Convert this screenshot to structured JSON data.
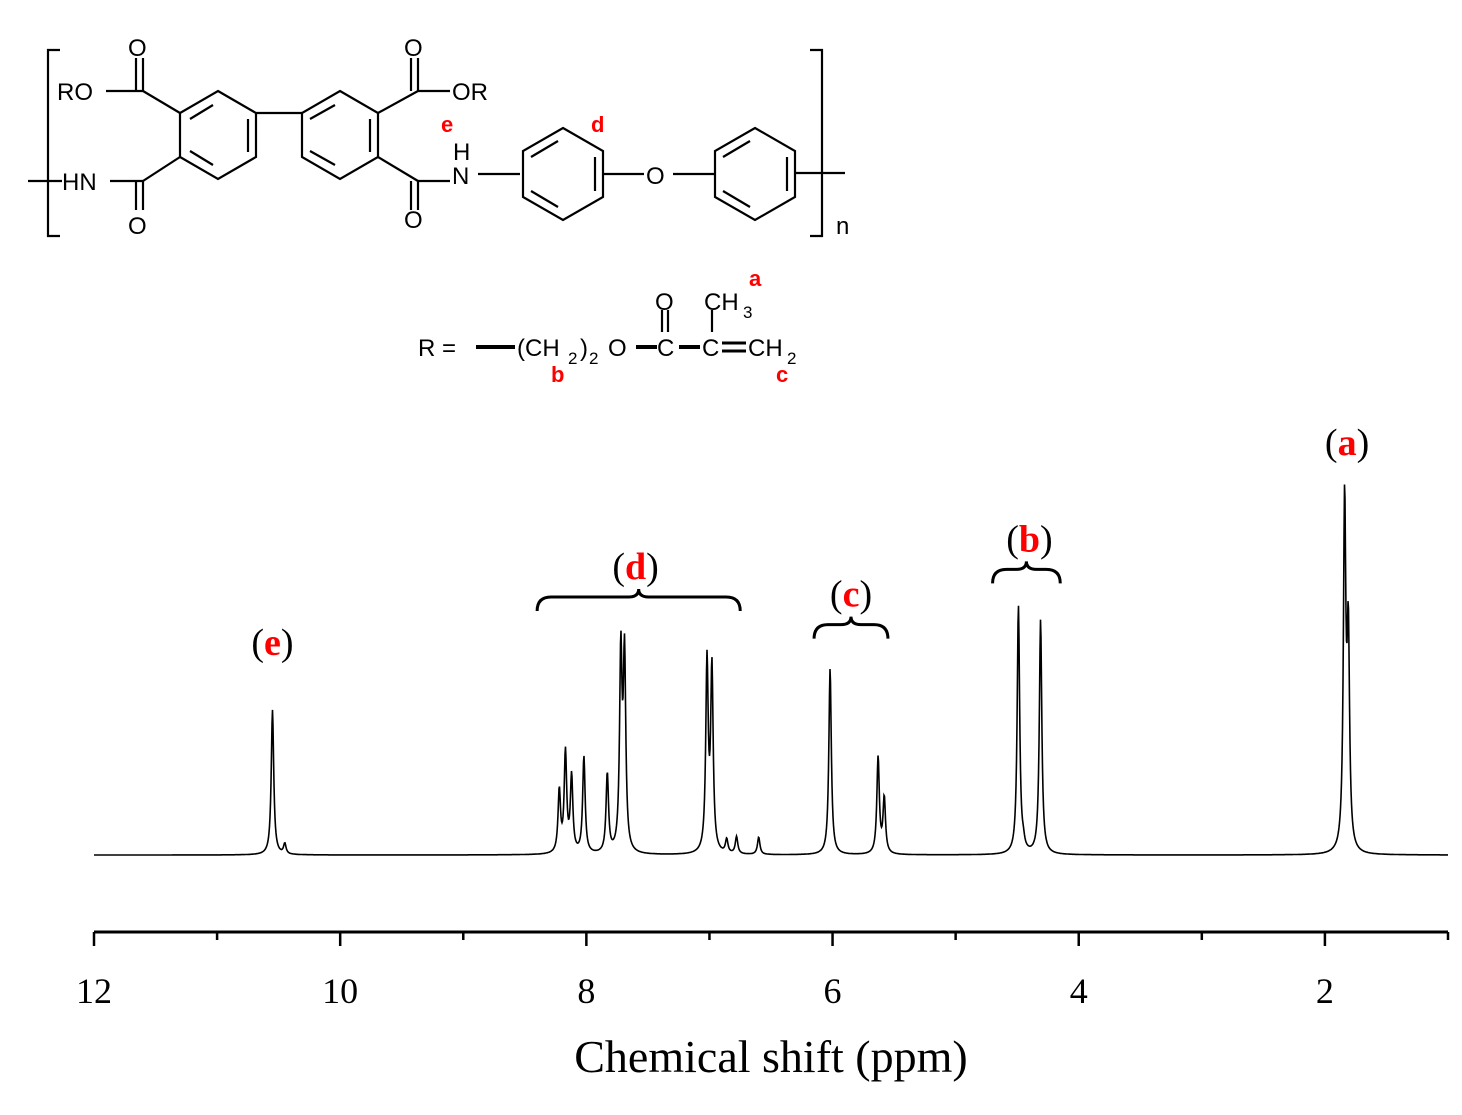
{
  "structure": {
    "left_ester": "RO",
    "right_ester": "OR",
    "oxygen": "O",
    "amide_left": "HN",
    "amide_right_h": "H",
    "amide_right_n": "N",
    "ether_o": "O",
    "repeat": "n",
    "label_d": "d",
    "label_e": "e",
    "r_def": "R =",
    "r_chain": "(CH",
    "r_sub2": "2",
    "r_close": ")",
    "r_o": "O",
    "r_c1": "C",
    "r_o2": "O",
    "r_c2": "C",
    "r_ch3": "CH",
    "r_sub3": "3",
    "r_ch2": "CH",
    "label_a": "a",
    "label_b": "b",
    "label_c": "c"
  },
  "chart_data": {
    "type": "line",
    "title": "",
    "xlabel": "Chemical shift (ppm)",
    "ylabel": "",
    "xlim": [
      12,
      1
    ],
    "x_reversed": true,
    "x_ticks": [
      "12",
      "10",
      "8",
      "6",
      "4",
      "2"
    ],
    "x_tick_values": [
      12,
      10,
      8,
      6,
      4,
      2
    ],
    "baseline_intensity": 0,
    "ylim": [
      0,
      1
    ],
    "peaks": [
      {
        "ppm": 10.55,
        "intensity": 0.42,
        "label": "e"
      },
      {
        "ppm": 10.45,
        "intensity": 0.03
      },
      {
        "ppm": 8.22,
        "intensity": 0.18
      },
      {
        "ppm": 8.17,
        "intensity": 0.29
      },
      {
        "ppm": 8.12,
        "intensity": 0.22
      },
      {
        "ppm": 8.02,
        "intensity": 0.28
      },
      {
        "ppm": 7.83,
        "intensity": 0.23
      },
      {
        "ppm": 7.72,
        "intensity": 0.57
      },
      {
        "ppm": 7.69,
        "intensity": 0.56
      },
      {
        "ppm": 7.02,
        "intensity": 0.55
      },
      {
        "ppm": 6.98,
        "intensity": 0.53
      },
      {
        "ppm": 6.86,
        "intensity": 0.04
      },
      {
        "ppm": 6.78,
        "intensity": 0.05
      },
      {
        "ppm": 6.6,
        "intensity": 0.05
      },
      {
        "ppm": 6.02,
        "intensity": 0.54
      },
      {
        "ppm": 5.63,
        "intensity": 0.28
      },
      {
        "ppm": 5.58,
        "intensity": 0.16
      },
      {
        "ppm": 4.49,
        "intensity": 0.72
      },
      {
        "ppm": 4.45,
        "intensity": 0.02
      },
      {
        "ppm": 4.31,
        "intensity": 0.68
      },
      {
        "ppm": 1.84,
        "intensity": 1.0
      },
      {
        "ppm": 1.81,
        "intensity": 0.6
      }
    ],
    "annotations": [
      {
        "text": "(e)",
        "letter": "e",
        "ppm": 10.55,
        "level": 0.58
      },
      {
        "text": "(d)",
        "letter": "d",
        "ppm": 7.6,
        "level": 0.8,
        "bracket": [
          8.4,
          6.75
        ]
      },
      {
        "text": "(c)",
        "letter": "c",
        "ppm": 5.85,
        "level": 0.72,
        "bracket": [
          6.15,
          5.55
        ]
      },
      {
        "text": "(b)",
        "letter": "b",
        "ppm": 4.4,
        "level": 0.88,
        "bracket": [
          4.7,
          4.15
        ]
      },
      {
        "text": "(a)",
        "letter": "a",
        "ppm": 1.82,
        "level": 1.16
      }
    ],
    "colors": {
      "line": "#000000",
      "annotation": "#ff0000"
    }
  }
}
